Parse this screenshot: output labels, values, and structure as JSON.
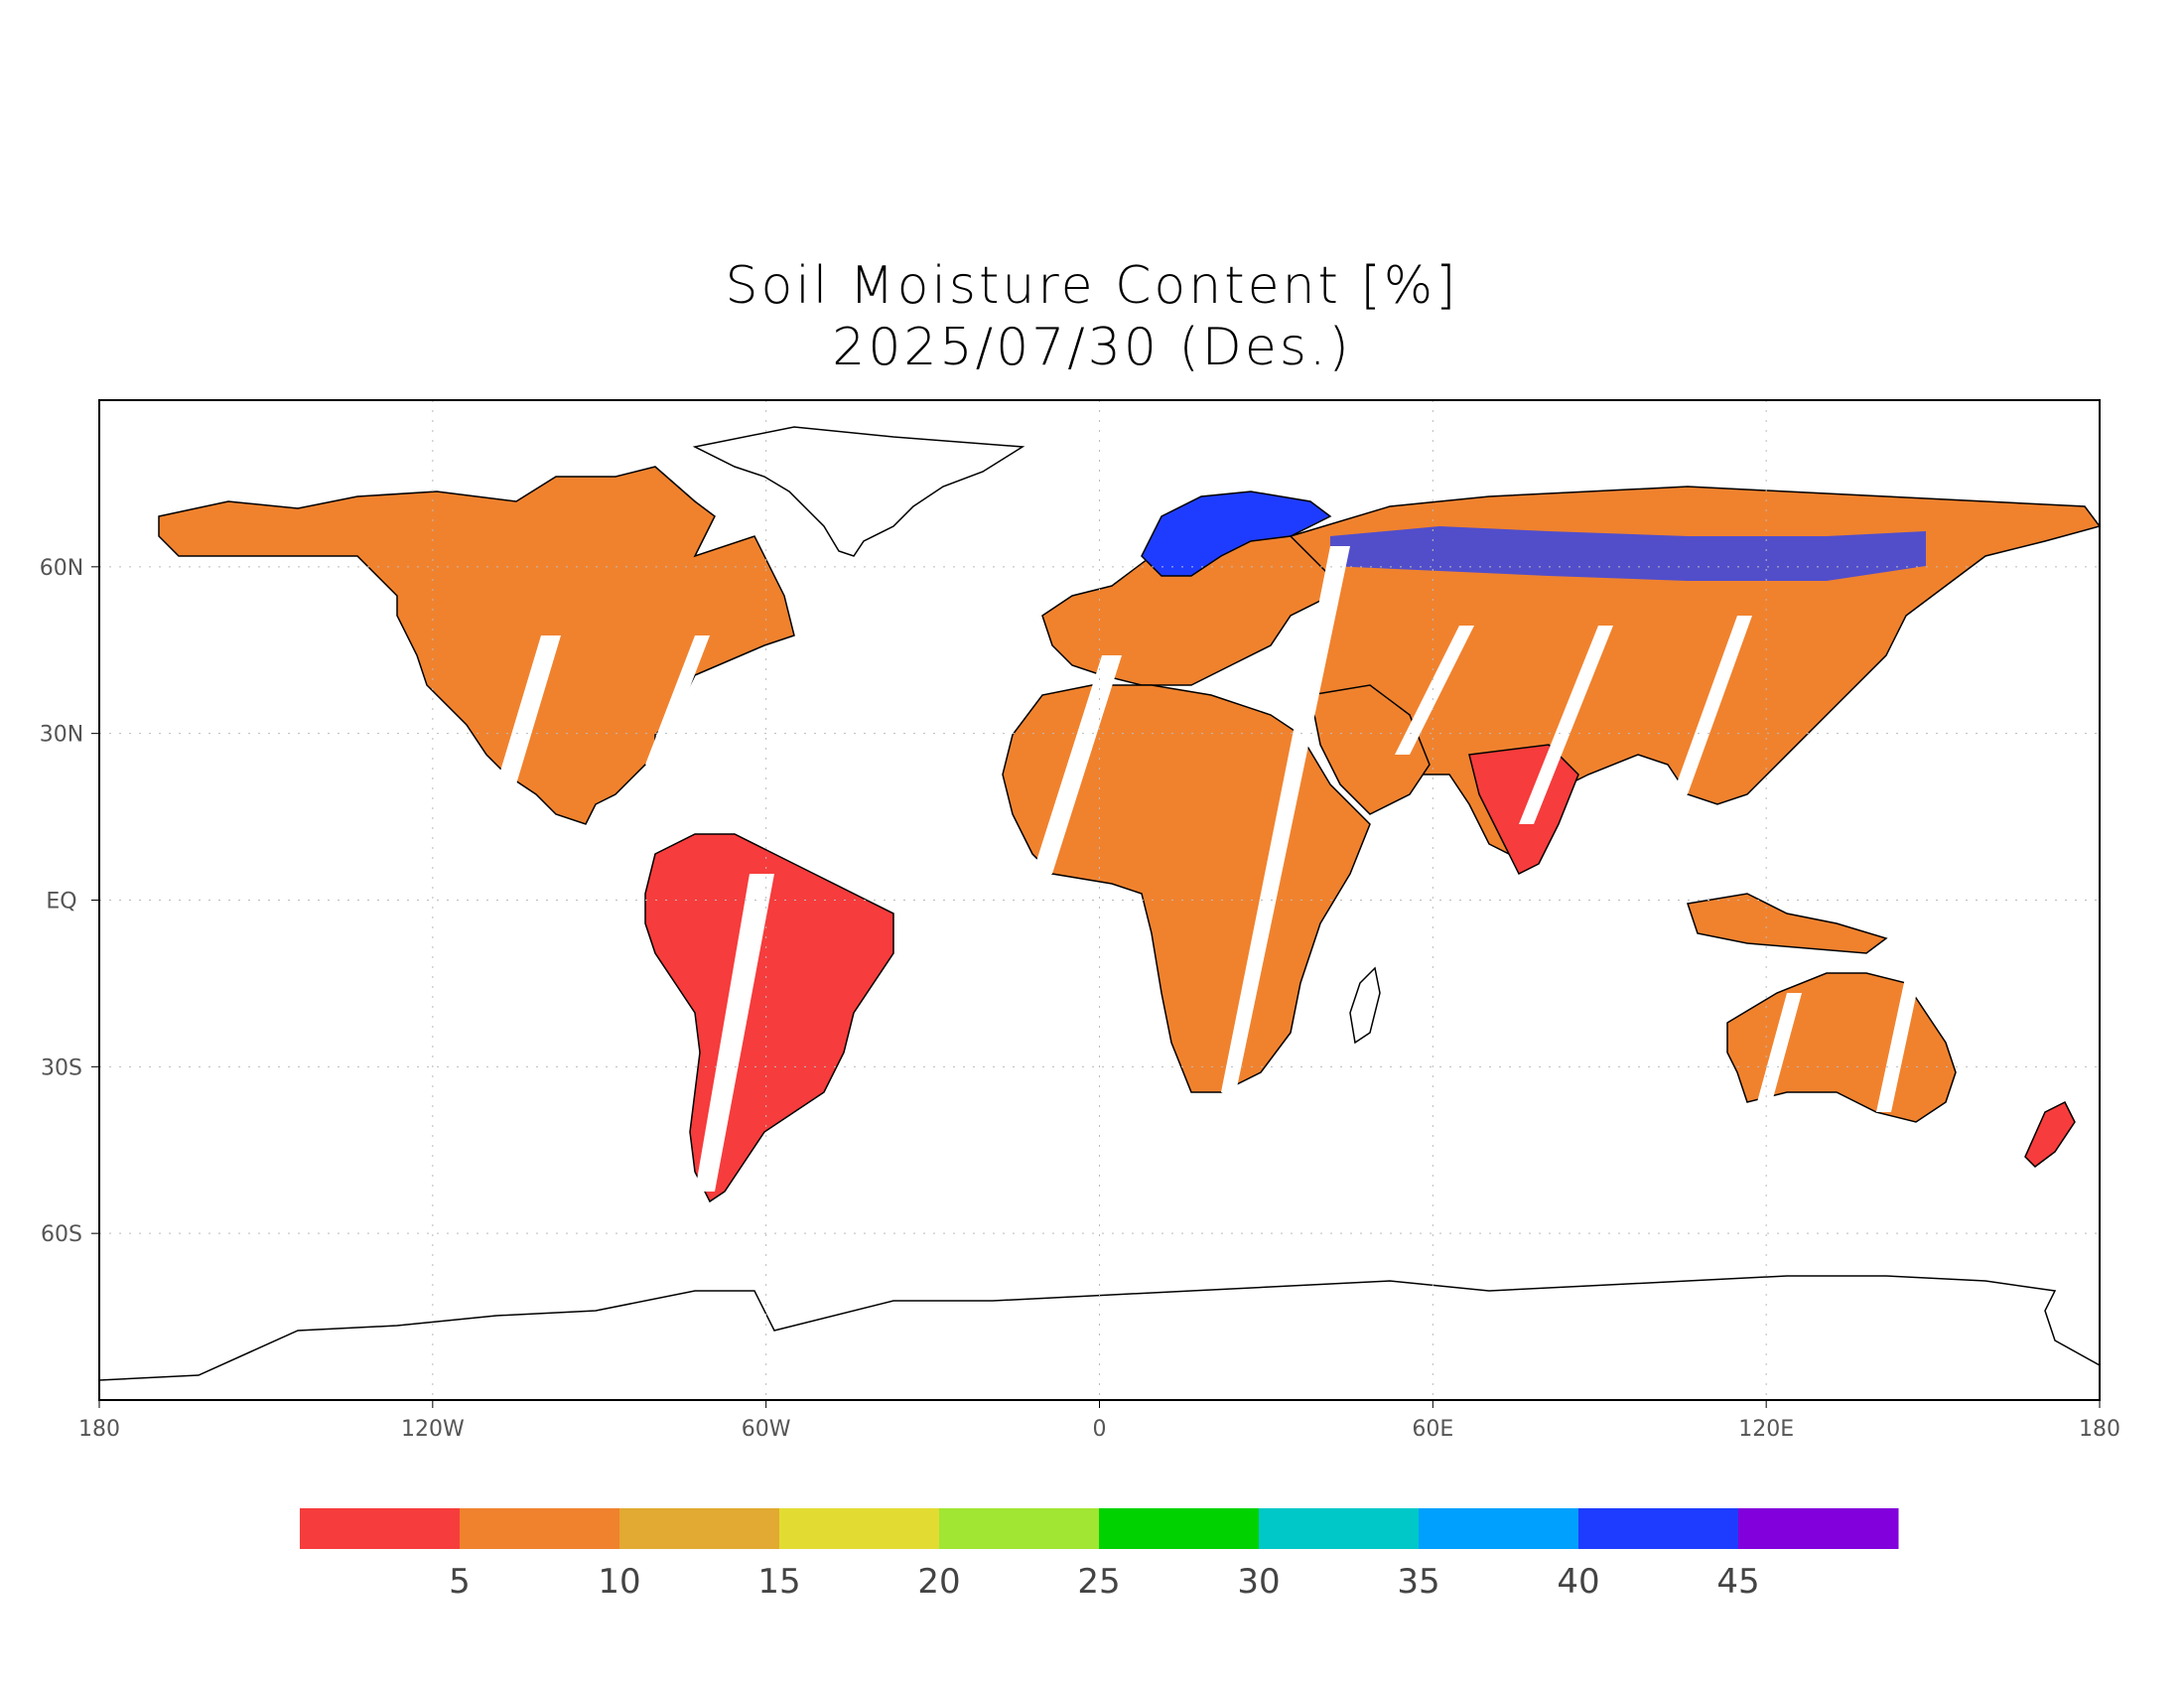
{
  "title": {
    "line1": "Soil Moisture Content [%]",
    "line2": "2025/07/30 (Des.)"
  },
  "map": {
    "projection": "equirectangular",
    "lon_range": [
      -180,
      180
    ],
    "lat_range": [
      -90,
      90
    ],
    "lon_ticks": [
      {
        "value": -180,
        "label": "180"
      },
      {
        "value": -120,
        "label": "120W"
      },
      {
        "value": -60,
        "label": "60W"
      },
      {
        "value": 0,
        "label": "0"
      },
      {
        "value": 60,
        "label": "60E"
      },
      {
        "value": 120,
        "label": "120E"
      },
      {
        "value": 180,
        "label": "180"
      }
    ],
    "lat_ticks": [
      {
        "value": 60,
        "label": "60N"
      },
      {
        "value": 30,
        "label": "30N"
      },
      {
        "value": 0,
        "label": "EQ"
      },
      {
        "value": -30,
        "label": "30S"
      },
      {
        "value": -60,
        "label": "60S"
      }
    ],
    "gridlines": "dotted",
    "colors": {
      "coastline": "#000000",
      "grid": "#bbbbbb",
      "frame": "#000000"
    }
  },
  "colorbar": {
    "colors": [
      "#f63c3c",
      "#f0822e",
      "#e2aa32",
      "#e2dc32",
      "#a0e632",
      "#00d200",
      "#00c8c8",
      "#00a0ff",
      "#1e3cff",
      "#8200dc"
    ],
    "labels": [
      "5",
      "10",
      "15",
      "20",
      "25",
      "30",
      "35",
      "40",
      "45"
    ]
  }
}
